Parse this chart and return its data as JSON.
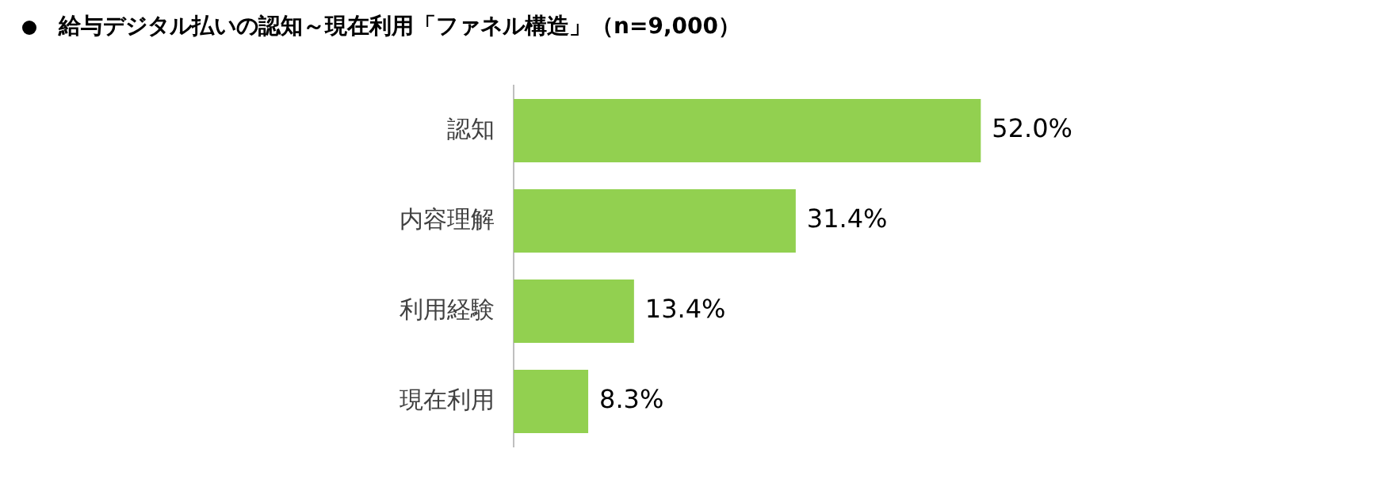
{
  "chart_data": {
    "type": "bar",
    "orientation": "horizontal",
    "title": "給与デジタル払いの認知～現在利用「ファネル構造」（n=9,000）",
    "categories": [
      "認知",
      "内容理解",
      "利用経験",
      "現在利用"
    ],
    "values": [
      52.0,
      31.4,
      13.4,
      8.3
    ],
    "value_labels": [
      "52.0%",
      "31.4%",
      "13.4%",
      "8.3%"
    ],
    "color": "#92d050",
    "tick_labels": "y",
    "legend": false
  }
}
